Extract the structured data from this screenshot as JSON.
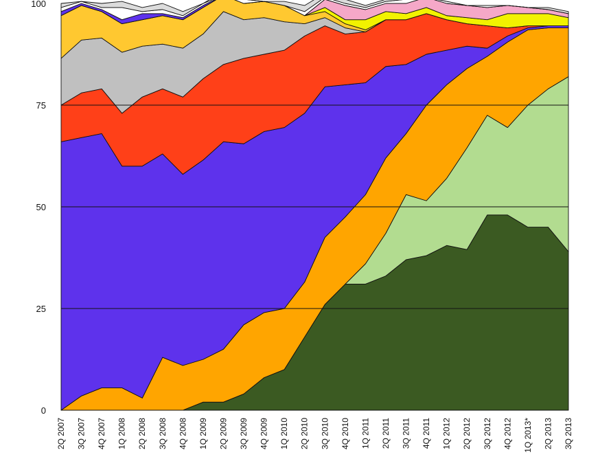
{
  "chart_data": {
    "type": "area",
    "stacked": true,
    "categories": [
      "2Q 2007",
      "3Q 2007",
      "4Q 2007",
      "1Q 2008",
      "2Q 2008",
      "3Q 2008",
      "4Q 2008",
      "1Q 2009",
      "2Q 2009",
      "3Q 2009",
      "4Q 2009",
      "1Q 2010",
      "2Q 2010",
      "3Q 2010",
      "4Q 2010",
      "1Q 2011",
      "2Q 2011",
      "3Q 2011",
      "4Q 2011",
      "1Q 2012",
      "2Q 2012",
      "3Q 2012",
      "4Q 2012",
      "1Q 2013*",
      "2Q 2013",
      "3Q 2013"
    ],
    "ylim": [
      0,
      100
    ],
    "yticks": [
      0,
      25,
      50,
      75,
      100
    ],
    "grid": "horizontal",
    "series": [
      {
        "color": "#3b5a22",
        "values": [
          0,
          0,
          0,
          0,
          0,
          0,
          0,
          2,
          2,
          4,
          8,
          10,
          18,
          26,
          31,
          31,
          33,
          37,
          38,
          40.5,
          39.5,
          48,
          48,
          45,
          45,
          39
        ]
      },
      {
        "color": "#b2dc90",
        "values": [
          0,
          0,
          0,
          0,
          0,
          0,
          0,
          0,
          0,
          0,
          0,
          0,
          0,
          0,
          0,
          5,
          10.5,
          16,
          13.5,
          16.5,
          25,
          24.5,
          21.5,
          30,
          34,
          43
        ]
      },
      {
        "color": "#ffa500",
        "values": [
          0,
          3.5,
          5.5,
          5.5,
          3,
          13,
          11,
          10.5,
          13,
          17,
          16,
          15,
          13.5,
          16.5,
          16.5,
          17,
          18.5,
          15,
          23.5,
          23,
          19.5,
          14.5,
          21,
          18.5,
          15,
          12
        ]
      },
      {
        "color": "#5e32ec",
        "values": [
          66,
          63.5,
          62.5,
          54.5,
          57,
          50,
          47,
          49,
          51,
          44.5,
          44.5,
          44.5,
          41.5,
          37,
          32.5,
          27.5,
          22.5,
          17,
          12.5,
          8.5,
          5.5,
          2,
          1.5,
          0.5,
          0.5,
          0.5
        ]
      },
      {
        "color": "#ff4018",
        "values": [
          9,
          11,
          11,
          13,
          17,
          16,
          19,
          20,
          19,
          21,
          19,
          19,
          19,
          15,
          12.5,
          12.5,
          11.5,
          11,
          10,
          7.5,
          5.5,
          5.5,
          2,
          0.5,
          0,
          0
        ]
      },
      {
        "color": "#c0c0c0",
        "values": [
          11.5,
          13,
          12.5,
          15,
          12.5,
          11,
          12,
          11,
          13,
          9.5,
          9,
          7,
          3,
          2,
          1.5,
          0,
          0,
          0,
          0,
          0,
          0,
          0,
          0,
          0,
          0,
          0
        ]
      },
      {
        "color": "#ffc830",
        "values": [
          10.5,
          8.5,
          6.5,
          7,
          6.5,
          7,
          7,
          6.5,
          4,
          4,
          4,
          4,
          2,
          1.5,
          1,
          0.5,
          0,
          0,
          0,
          0,
          0,
          0,
          0,
          0,
          0,
          0
        ]
      },
      {
        "color": "#f2f200",
        "values": [
          0,
          0,
          0,
          0,
          0,
          0,
          0,
          0,
          0,
          0,
          0,
          0,
          0,
          1,
          1,
          2.5,
          2,
          1.5,
          1.5,
          1,
          1.5,
          1.5,
          3.5,
          3,
          3,
          2
        ]
      },
      {
        "color": "#f5a8c8",
        "values": [
          0,
          0,
          0,
          0,
          0,
          0,
          0,
          0,
          0,
          0,
          0,
          0,
          0,
          2,
          3.5,
          2.5,
          2,
          2.5,
          2.5,
          3,
          3,
          3,
          2,
          1.5,
          1,
          1
        ]
      },
      {
        "color": "#5e32ec",
        "values": [
          1,
          0.5,
          0.5,
          1,
          1.5,
          0.5,
          0.5,
          0.5,
          0,
          0,
          0,
          0,
          0,
          0,
          0,
          0,
          0,
          0,
          0,
          0,
          0,
          0,
          0,
          0,
          0,
          0
        ]
      },
      {
        "color": "#ffffff",
        "values": [
          1,
          0.5,
          0.5,
          3,
          0.5,
          1,
          0.5,
          0.5,
          0,
          1,
          0,
          0,
          1,
          0.5,
          0.5,
          0.5,
          0.5,
          1,
          0,
          0.5,
          0,
          0.5,
          0,
          0,
          0,
          0
        ]
      },
      {
        "color": "#dcdcdc",
        "values": [
          1,
          0,
          1,
          1.5,
          1,
          1.5,
          1,
          0,
          1,
          0,
          0,
          1,
          1.5,
          1,
          1,
          0.5,
          0.5,
          0,
          0,
          0,
          0,
          0,
          0,
          0,
          0.5,
          0.5
        ]
      }
    ]
  }
}
